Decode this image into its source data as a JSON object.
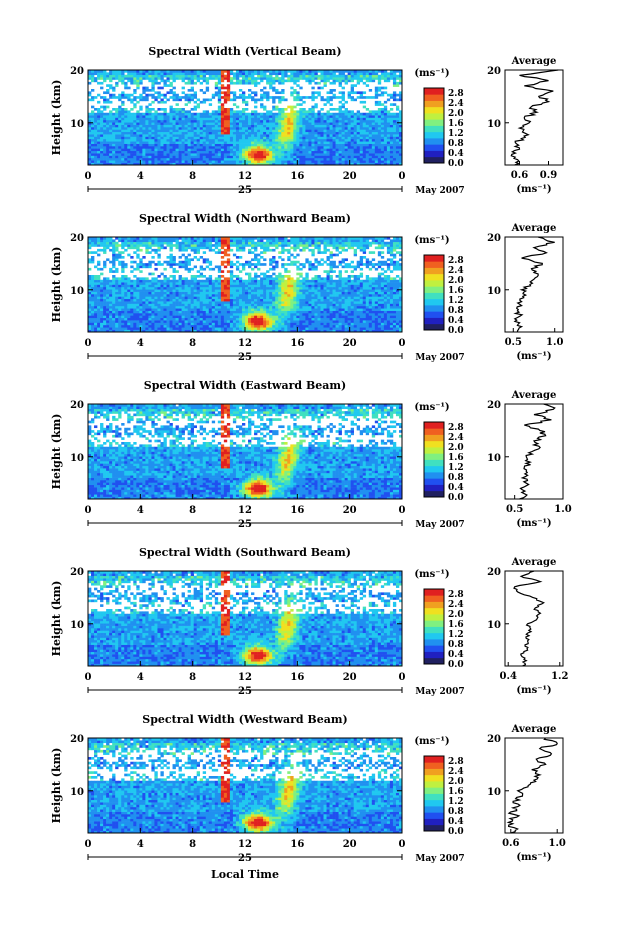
{
  "figure": {
    "x_axis_title": "Local Time",
    "date_label": "May 2007",
    "day_label": "25",
    "y_axis_title": "Height (km)",
    "colorbar_unit": "(ms⁻¹)",
    "average_title": "Average",
    "average_unit": "(ms⁻¹)"
  },
  "colors": {
    "scale": [
      "#202060",
      "#2020c0",
      "#2050f0",
      "#2090f0",
      "#20c8f0",
      "#40e0c0",
      "#80f080",
      "#c0f040",
      "#f0e020",
      "#f0a020",
      "#f06020",
      "#e02020"
    ]
  },
  "chart_data": [
    {
      "type": "heatmap",
      "title": "Spectral Width (Vertical Beam)",
      "xlabel": "Local Time",
      "ylabel": "Height (km)",
      "x_ticks": [
        "0",
        "4",
        "8",
        "12",
        "16",
        "20",
        "0"
      ],
      "xlim": [
        0,
        24
      ],
      "y_ticks": [
        "10",
        "20"
      ],
      "ylim": [
        2,
        20
      ],
      "colorbar": {
        "label": "(ms⁻¹)",
        "ticks": [
          "0.0",
          "0.4",
          "0.8",
          "1.2",
          "1.6",
          "2.0",
          "2.4",
          "2.8"
        ],
        "range": [
          0,
          3.0
        ]
      },
      "average_profile": {
        "title": "Average",
        "xlabel": "(ms⁻¹)",
        "x_ticks": [
          "0.6",
          "0.9"
        ],
        "xlim": [
          0.45,
          1.05
        ],
        "profile": [
          [
            2,
            0.55
          ],
          [
            3,
            0.58
          ],
          [
            4,
            0.52
          ],
          [
            5,
            0.6
          ],
          [
            6,
            0.57
          ],
          [
            7,
            0.62
          ],
          [
            8,
            0.66
          ],
          [
            9,
            0.6
          ],
          [
            10,
            0.7
          ],
          [
            11,
            0.65
          ],
          [
            12,
            0.78
          ],
          [
            13,
            0.72
          ],
          [
            14,
            0.9
          ],
          [
            15,
            0.8
          ],
          [
            16,
            0.95
          ],
          [
            17,
            0.65
          ],
          [
            18,
            0.9
          ],
          [
            19,
            0.6
          ],
          [
            20,
            1.0
          ]
        ]
      }
    },
    {
      "type": "heatmap",
      "title": "Spectral Width (Northward Beam)",
      "xlabel": "Local Time",
      "ylabel": "Height (km)",
      "x_ticks": [
        "0",
        "4",
        "8",
        "12",
        "16",
        "20",
        "0"
      ],
      "xlim": [
        0,
        24
      ],
      "y_ticks": [
        "10",
        "20"
      ],
      "ylim": [
        2,
        20
      ],
      "colorbar": {
        "label": "(ms⁻¹)",
        "ticks": [
          "0.0",
          "0.4",
          "0.8",
          "1.2",
          "1.6",
          "2.0",
          "2.4",
          "2.8"
        ],
        "range": [
          0,
          3.0
        ]
      },
      "average_profile": {
        "title": "Average",
        "xlabel": "(ms⁻¹)",
        "x_ticks": [
          "0.5",
          "1.0"
        ],
        "xlim": [
          0.4,
          1.1
        ],
        "profile": [
          [
            2,
            0.55
          ],
          [
            3,
            0.6
          ],
          [
            4,
            0.52
          ],
          [
            5,
            0.58
          ],
          [
            6,
            0.55
          ],
          [
            7,
            0.6
          ],
          [
            8,
            0.58
          ],
          [
            9,
            0.65
          ],
          [
            10,
            0.6
          ],
          [
            11,
            0.7
          ],
          [
            12,
            0.75
          ],
          [
            13,
            0.8
          ],
          [
            14,
            0.72
          ],
          [
            15,
            0.85
          ],
          [
            16,
            0.6
          ],
          [
            17,
            0.9
          ],
          [
            18,
            0.75
          ],
          [
            19,
            1.0
          ],
          [
            20,
            0.8
          ]
        ]
      }
    },
    {
      "type": "heatmap",
      "title": "Spectral Width (Eastward Beam)",
      "xlabel": "Local Time",
      "ylabel": "Height (km)",
      "x_ticks": [
        "0",
        "4",
        "8",
        "12",
        "16",
        "20",
        "0"
      ],
      "xlim": [
        0,
        24
      ],
      "y_ticks": [
        "10",
        "20"
      ],
      "ylim": [
        2,
        20
      ],
      "colorbar": {
        "label": "(ms⁻¹)",
        "ticks": [
          "0.0",
          "0.4",
          "0.8",
          "1.2",
          "1.6",
          "2.0",
          "2.4",
          "2.8"
        ],
        "range": [
          0,
          3.0
        ]
      },
      "average_profile": {
        "title": "Average",
        "xlabel": "(ms⁻¹)",
        "x_ticks": [
          "0.5",
          "1.0"
        ],
        "xlim": [
          0.4,
          1.0
        ],
        "profile": [
          [
            2,
            0.55
          ],
          [
            3,
            0.6
          ],
          [
            4,
            0.56
          ],
          [
            5,
            0.62
          ],
          [
            6,
            0.58
          ],
          [
            7,
            0.63
          ],
          [
            8,
            0.6
          ],
          [
            9,
            0.66
          ],
          [
            10,
            0.62
          ],
          [
            11,
            0.68
          ],
          [
            12,
            0.75
          ],
          [
            13,
            0.7
          ],
          [
            14,
            0.82
          ],
          [
            15,
            0.76
          ],
          [
            16,
            0.6
          ],
          [
            17,
            0.88
          ],
          [
            18,
            0.7
          ],
          [
            19,
            0.9
          ],
          [
            20,
            0.8
          ]
        ]
      }
    },
    {
      "type": "heatmap",
      "title": "Spectral Width (Southward Beam)",
      "xlabel": "Local Time",
      "ylabel": "Height (km)",
      "x_ticks": [
        "0",
        "4",
        "8",
        "12",
        "16",
        "20",
        "0"
      ],
      "xlim": [
        0,
        24
      ],
      "y_ticks": [
        "10",
        "20"
      ],
      "ylim": [
        2,
        20
      ],
      "colorbar": {
        "label": "(ms⁻¹)",
        "ticks": [
          "0.0",
          "0.4",
          "0.8",
          "1.2",
          "1.6",
          "2.0",
          "2.4",
          "2.8"
        ],
        "range": [
          0,
          3.0
        ]
      },
      "average_profile": {
        "title": "Average",
        "xlabel": "(ms⁻¹)",
        "x_ticks": [
          "0.4",
          "1.2"
        ],
        "xlim": [
          0.35,
          1.25
        ],
        "profile": [
          [
            2,
            0.62
          ],
          [
            3,
            0.68
          ],
          [
            4,
            0.6
          ],
          [
            5,
            0.7
          ],
          [
            6,
            0.66
          ],
          [
            7,
            0.72
          ],
          [
            8,
            0.68
          ],
          [
            9,
            0.75
          ],
          [
            10,
            0.7
          ],
          [
            11,
            0.85
          ],
          [
            12,
            0.9
          ],
          [
            13,
            0.82
          ],
          [
            14,
            0.95
          ],
          [
            15,
            0.78
          ],
          [
            16,
            0.55
          ],
          [
            17,
            0.5
          ],
          [
            18,
            0.9
          ],
          [
            19,
            0.6
          ],
          [
            20,
            0.8
          ]
        ]
      }
    },
    {
      "type": "heatmap",
      "title": "Spectral Width (Westward Beam)",
      "xlabel": "Local Time",
      "ylabel": "Height (km)",
      "x_ticks": [
        "0",
        "4",
        "8",
        "12",
        "16",
        "20",
        "0"
      ],
      "xlim": [
        0,
        24
      ],
      "y_ticks": [
        "10",
        "20"
      ],
      "ylim": [
        2,
        20
      ],
      "colorbar": {
        "label": "(ms⁻¹)",
        "ticks": [
          "0.0",
          "0.4",
          "0.8",
          "1.2",
          "1.6",
          "2.0",
          "2.4",
          "2.8"
        ],
        "range": [
          0,
          3.0
        ]
      },
      "average_profile": {
        "title": "Average",
        "xlabel": "(ms⁻¹)",
        "x_ticks": [
          "0.6",
          "1.0"
        ],
        "xlim": [
          0.55,
          1.05
        ],
        "profile": [
          [
            2,
            0.6
          ],
          [
            3,
            0.63
          ],
          [
            4,
            0.58
          ],
          [
            5,
            0.65
          ],
          [
            6,
            0.6
          ],
          [
            7,
            0.66
          ],
          [
            8,
            0.62
          ],
          [
            9,
            0.7
          ],
          [
            10,
            0.66
          ],
          [
            11,
            0.75
          ],
          [
            12,
            0.8
          ],
          [
            13,
            0.85
          ],
          [
            14,
            0.78
          ],
          [
            15,
            0.9
          ],
          [
            16,
            0.82
          ],
          [
            17,
            0.95
          ],
          [
            18,
            0.85
          ],
          [
            19,
            1.0
          ],
          [
            20,
            0.9
          ]
        ]
      }
    }
  ]
}
